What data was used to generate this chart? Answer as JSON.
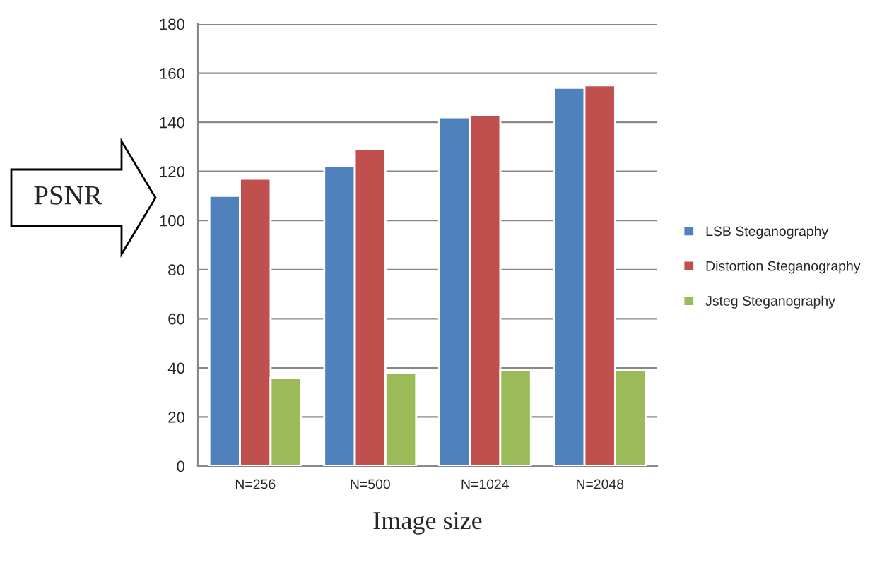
{
  "chart_data": {
    "type": "bar",
    "xlabel": "Image size",
    "ylabel": "PSNR",
    "categories": [
      "N=256",
      "N=500",
      "N=1024",
      "N=2048"
    ],
    "series": [
      {
        "name": "LSB Steganography",
        "color": "#4f81bd",
        "values": [
          110,
          122,
          142,
          154
        ]
      },
      {
        "name": "Distortion Steganography",
        "color": "#c0504d",
        "values": [
          117,
          129,
          143,
          155
        ]
      },
      {
        "name": "Jsteg Steganography",
        "color": "#9bbb59",
        "values": [
          36,
          38,
          39,
          39
        ]
      }
    ],
    "ylim": [
      0,
      180
    ],
    "yticks": [
      0,
      20,
      40,
      60,
      80,
      100,
      120,
      140,
      160,
      180
    ],
    "grid": "y",
    "legend": "right"
  }
}
